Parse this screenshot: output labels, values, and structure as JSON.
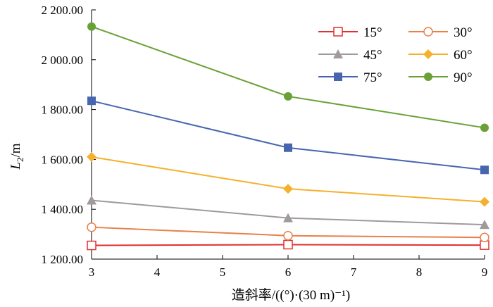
{
  "chart_data": {
    "type": "line",
    "xlabel": "造斜率/((°)·(30 m)⁻¹)",
    "ylabel_main": "L",
    "ylabel_sub": "2",
    "ylabel_unit": "/m",
    "x": [
      3,
      6,
      9
    ],
    "xlim": [
      3,
      9
    ],
    "ylim": [
      1200,
      2200
    ],
    "x_ticks": [
      "3",
      "4",
      "5",
      "6",
      "7",
      "8",
      "9"
    ],
    "y_ticks": [
      "1 200.00",
      "1 400.00",
      "1 600.00",
      "1 800.00",
      "2 000.00",
      "2 200.00"
    ],
    "grid": false,
    "legend_position": "top-right",
    "series": [
      {
        "name": "15°",
        "values": [
          1255,
          1258,
          1256
        ],
        "color": "#e03030",
        "marker": "square-open"
      },
      {
        "name": "30°",
        "values": [
          1328,
          1294,
          1287
        ],
        "color": "#e8804a",
        "marker": "circle-open"
      },
      {
        "name": "45°",
        "values": [
          1436,
          1365,
          1338
        ],
        "color": "#a09a9a",
        "marker": "triangle"
      },
      {
        "name": "60°",
        "values": [
          1610,
          1482,
          1430
        ],
        "color": "#f5b12b",
        "marker": "diamond"
      },
      {
        "name": "75°",
        "values": [
          1835,
          1647,
          1558
        ],
        "color": "#4866b0",
        "marker": "square"
      },
      {
        "name": "90°",
        "values": [
          2133,
          1853,
          1727
        ],
        "color": "#6aa137",
        "marker": "circle"
      }
    ]
  }
}
